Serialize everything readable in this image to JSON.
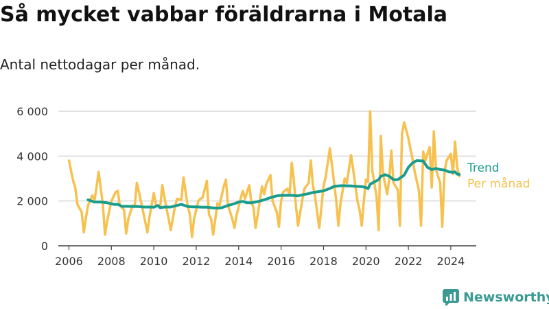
{
  "title": "Så mycket vabbar föräldrarna i Motala",
  "subtitle": "Antal nettodagar per månad.",
  "brand": {
    "name": "Newsworthy",
    "color": "#3c9a94",
    "icon": "newsworthy-logo-icon"
  },
  "colors": {
    "trend": "#1a9c8c",
    "monthly": "#f7c14f",
    "grid": "#d9d9d9",
    "axis": "#444444",
    "text": "#333333"
  },
  "chart_data": {
    "type": "line",
    "title": "Så mycket vabbar föräldrarna i Motala",
    "subtitle": "Antal nettodagar per månad.",
    "xlabel": "",
    "ylabel": "",
    "xlim": [
      2005.5,
      2025.2
    ],
    "ylim": [
      0,
      6000
    ],
    "x_ticks": [
      2006,
      2008,
      2010,
      2012,
      2014,
      2016,
      2018,
      2020,
      2022,
      2024
    ],
    "x_tick_labels": [
      "2006",
      "2008",
      "2010",
      "2012",
      "2014",
      "2016",
      "2018",
      "2020",
      "2022",
      "2024"
    ],
    "y_ticks": [
      0,
      2000,
      4000,
      6000
    ],
    "y_tick_labels": [
      "0",
      "2 000",
      "4 000",
      "6 000"
    ],
    "grid": true,
    "legend": "right, at end of lines",
    "series": [
      {
        "name": "Per månad",
        "color": "#f7c14f",
        "points": [
          [
            2006.0,
            3800
          ],
          [
            2006.2,
            2900
          ],
          [
            2006.3,
            2600
          ],
          [
            2006.4,
            1850
          ],
          [
            2006.6,
            1500
          ],
          [
            2006.7,
            600
          ],
          [
            2006.8,
            1250
          ],
          [
            2006.9,
            1800
          ],
          [
            2007.1,
            2250
          ],
          [
            2007.2,
            2000
          ],
          [
            2007.3,
            2600
          ],
          [
            2007.4,
            3300
          ],
          [
            2007.6,
            1850
          ],
          [
            2007.7,
            500
          ],
          [
            2007.8,
            1100
          ],
          [
            2008.0,
            2000
          ],
          [
            2008.2,
            2400
          ],
          [
            2008.3,
            2450
          ],
          [
            2008.4,
            1800
          ],
          [
            2008.6,
            1600
          ],
          [
            2008.7,
            550
          ],
          [
            2008.8,
            1200
          ],
          [
            2009.0,
            1800
          ],
          [
            2009.1,
            1750
          ],
          [
            2009.2,
            2800
          ],
          [
            2009.3,
            2400
          ],
          [
            2009.5,
            1500
          ],
          [
            2009.7,
            600
          ],
          [
            2009.8,
            1300
          ],
          [
            2010.0,
            2350
          ],
          [
            2010.1,
            1850
          ],
          [
            2010.3,
            1700
          ],
          [
            2010.4,
            2700
          ],
          [
            2010.6,
            1650
          ],
          [
            2010.7,
            1200
          ],
          [
            2010.8,
            700
          ],
          [
            2011.0,
            1750
          ],
          [
            2011.1,
            2100
          ],
          [
            2011.3,
            2050
          ],
          [
            2011.4,
            3050
          ],
          [
            2011.6,
            1750
          ],
          [
            2011.7,
            1400
          ],
          [
            2011.8,
            400
          ],
          [
            2011.9,
            1200
          ],
          [
            2012.1,
            2000
          ],
          [
            2012.2,
            2100
          ],
          [
            2012.3,
            2150
          ],
          [
            2012.5,
            2900
          ],
          [
            2012.6,
            1400
          ],
          [
            2012.7,
            1200
          ],
          [
            2012.8,
            500
          ],
          [
            2013.0,
            1900
          ],
          [
            2013.1,
            1800
          ],
          [
            2013.3,
            2650
          ],
          [
            2013.4,
            2950
          ],
          [
            2013.5,
            1800
          ],
          [
            2013.7,
            1200
          ],
          [
            2013.8,
            800
          ],
          [
            2013.9,
            1350
          ],
          [
            2014.1,
            2150
          ],
          [
            2014.2,
            2450
          ],
          [
            2014.3,
            2100
          ],
          [
            2014.5,
            2700
          ],
          [
            2014.6,
            1950
          ],
          [
            2014.7,
            1700
          ],
          [
            2014.8,
            800
          ],
          [
            2014.9,
            1400
          ],
          [
            2015.1,
            2650
          ],
          [
            2015.2,
            2300
          ],
          [
            2015.3,
            2750
          ],
          [
            2015.5,
            3150
          ],
          [
            2015.6,
            2000
          ],
          [
            2015.8,
            1500
          ],
          [
            2015.9,
            850
          ],
          [
            2016.0,
            2000
          ],
          [
            2016.1,
            2400
          ],
          [
            2016.3,
            2550
          ],
          [
            2016.4,
            2250
          ],
          [
            2016.5,
            3700
          ],
          [
            2016.6,
            2950
          ],
          [
            2016.7,
            1800
          ],
          [
            2016.8,
            900
          ],
          [
            2017.0,
            2050
          ],
          [
            2017.1,
            2550
          ],
          [
            2017.3,
            2800
          ],
          [
            2017.4,
            3800
          ],
          [
            2017.5,
            2700
          ],
          [
            2017.6,
            2200
          ],
          [
            2017.8,
            800
          ],
          [
            2017.9,
            1700
          ],
          [
            2018.0,
            2650
          ],
          [
            2018.1,
            3050
          ],
          [
            2018.2,
            3700
          ],
          [
            2018.3,
            4350
          ],
          [
            2018.5,
            2800
          ],
          [
            2018.6,
            2000
          ],
          [
            2018.7,
            900
          ],
          [
            2018.8,
            1900
          ],
          [
            2019.0,
            3000
          ],
          [
            2019.1,
            2800
          ],
          [
            2019.3,
            4050
          ],
          [
            2019.4,
            3400
          ],
          [
            2019.6,
            2000
          ],
          [
            2019.7,
            1600
          ],
          [
            2019.8,
            900
          ],
          [
            2019.9,
            2000
          ],
          [
            2020.0,
            2950
          ],
          [
            2020.1,
            2850
          ],
          [
            2020.2,
            6000
          ],
          [
            2020.3,
            3350
          ],
          [
            2020.5,
            2200
          ],
          [
            2020.6,
            700
          ],
          [
            2020.7,
            4900
          ],
          [
            2020.8,
            3250
          ],
          [
            2021.0,
            2300
          ],
          [
            2021.1,
            3000
          ],
          [
            2021.2,
            4250
          ],
          [
            2021.3,
            2800
          ],
          [
            2021.5,
            2500
          ],
          [
            2021.6,
            900
          ],
          [
            2021.7,
            5000
          ],
          [
            2021.8,
            5500
          ],
          [
            2022.0,
            4800
          ],
          [
            2022.1,
            4300
          ],
          [
            2022.2,
            3850
          ],
          [
            2022.3,
            3300
          ],
          [
            2022.5,
            2450
          ],
          [
            2022.6,
            900
          ],
          [
            2022.7,
            4200
          ],
          [
            2022.8,
            3800
          ],
          [
            2023.0,
            4400
          ],
          [
            2023.1,
            2600
          ],
          [
            2023.2,
            5100
          ],
          [
            2023.3,
            3400
          ],
          [
            2023.5,
            2800
          ],
          [
            2023.6,
            850
          ],
          [
            2023.7,
            3250
          ],
          [
            2023.8,
            3800
          ],
          [
            2024.0,
            4100
          ],
          [
            2024.1,
            3200
          ],
          [
            2024.2,
            4650
          ],
          [
            2024.3,
            3500
          ],
          [
            2024.4,
            3100
          ]
        ]
      },
      {
        "name": "Trend",
        "color": "#1a9c8c",
        "points": [
          [
            2006.9,
            2050
          ],
          [
            2007.2,
            1950
          ],
          [
            2007.5,
            1950
          ],
          [
            2007.8,
            1920
          ],
          [
            2008.1,
            1850
          ],
          [
            2008.3,
            1850
          ],
          [
            2008.5,
            1760
          ],
          [
            2008.8,
            1760
          ],
          [
            2009.0,
            1750
          ],
          [
            2009.3,
            1750
          ],
          [
            2009.5,
            1730
          ],
          [
            2009.8,
            1730
          ],
          [
            2010.0,
            1720
          ],
          [
            2010.2,
            1800
          ],
          [
            2010.3,
            1700
          ],
          [
            2010.5,
            1730
          ],
          [
            2010.8,
            1730
          ],
          [
            2011.0,
            1780
          ],
          [
            2011.3,
            1850
          ],
          [
            2011.6,
            1750
          ],
          [
            2011.8,
            1740
          ],
          [
            2012.0,
            1740
          ],
          [
            2012.3,
            1720
          ],
          [
            2012.5,
            1720
          ],
          [
            2012.8,
            1690
          ],
          [
            2013.0,
            1680
          ],
          [
            2013.2,
            1700
          ],
          [
            2013.5,
            1800
          ],
          [
            2013.8,
            1880
          ],
          [
            2014.0,
            1950
          ],
          [
            2014.2,
            1980
          ],
          [
            2014.4,
            1920
          ],
          [
            2014.6,
            1920
          ],
          [
            2014.9,
            1970
          ],
          [
            2015.2,
            2050
          ],
          [
            2015.5,
            2150
          ],
          [
            2015.8,
            2230
          ],
          [
            2016.0,
            2250
          ],
          [
            2016.3,
            2250
          ],
          [
            2016.5,
            2250
          ],
          [
            2016.8,
            2230
          ],
          [
            2017.0,
            2270
          ],
          [
            2017.3,
            2330
          ],
          [
            2017.5,
            2380
          ],
          [
            2017.8,
            2420
          ],
          [
            2018.0,
            2450
          ],
          [
            2018.3,
            2560
          ],
          [
            2018.5,
            2650
          ],
          [
            2018.8,
            2680
          ],
          [
            2019.0,
            2680
          ],
          [
            2019.3,
            2670
          ],
          [
            2019.5,
            2650
          ],
          [
            2019.8,
            2640
          ],
          [
            2020.0,
            2600
          ],
          [
            2020.1,
            2550
          ],
          [
            2020.2,
            2750
          ],
          [
            2020.4,
            2850
          ],
          [
            2020.6,
            2950
          ],
          [
            2020.7,
            3100
          ],
          [
            2020.9,
            3170
          ],
          [
            2021.1,
            3100
          ],
          [
            2021.3,
            2950
          ],
          [
            2021.5,
            2950
          ],
          [
            2021.8,
            3150
          ],
          [
            2022.0,
            3500
          ],
          [
            2022.2,
            3700
          ],
          [
            2022.4,
            3800
          ],
          [
            2022.7,
            3780
          ],
          [
            2022.9,
            3500
          ],
          [
            2023.1,
            3400
          ],
          [
            2023.3,
            3450
          ],
          [
            2023.5,
            3400
          ],
          [
            2023.7,
            3380
          ],
          [
            2023.9,
            3300
          ],
          [
            2024.1,
            3280
          ],
          [
            2024.2,
            3300
          ],
          [
            2024.3,
            3200
          ],
          [
            2024.4,
            3180
          ]
        ]
      }
    ]
  }
}
